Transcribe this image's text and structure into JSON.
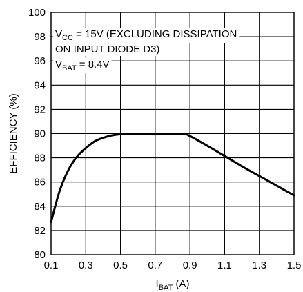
{
  "chart_data": {
    "type": "line",
    "title": "",
    "xlabel": {
      "main": "I",
      "sub": "BAT",
      "unit": " (A)"
    },
    "ylabel": "EFFICIENCY (%)",
    "xlim": [
      0.1,
      1.5
    ],
    "ylim": [
      80,
      100
    ],
    "xticks": [
      "0.1",
      "0.3",
      "0.5",
      "0.7",
      "0.9",
      "1.1",
      "1.3",
      "1.5"
    ],
    "yticks": [
      "80",
      "82",
      "84",
      "86",
      "88",
      "90",
      "92",
      "94",
      "96",
      "98",
      "100"
    ],
    "grid": true,
    "annotations": [
      {
        "parts": [
          {
            "t": "V"
          },
          {
            "t": "CC",
            "sub": true
          },
          {
            "t": " = 15V (EXCLUDING DISSIPATION"
          }
        ]
      },
      {
        "parts": [
          {
            "t": "ON INPUT DIODE D3)"
          }
        ]
      },
      {
        "parts": [
          {
            "t": "V"
          },
          {
            "t": "BAT",
            "sub": true
          },
          {
            "t": " = 8.4V"
          }
        ]
      }
    ],
    "series": [
      {
        "x": [
          0.1,
          0.15,
          0.2,
          0.25,
          0.3,
          0.35,
          0.4,
          0.45,
          0.5,
          0.55,
          0.6,
          0.7,
          0.8,
          0.87,
          0.9,
          1.0,
          1.1,
          1.2,
          1.3,
          1.4,
          1.5
        ],
        "y": [
          82.7,
          85.3,
          87.0,
          88.1,
          88.8,
          89.35,
          89.65,
          89.85,
          89.95,
          89.97,
          89.97,
          89.97,
          89.97,
          89.97,
          89.8,
          89.0,
          88.15,
          87.3,
          86.5,
          85.7,
          84.9
        ]
      }
    ]
  }
}
